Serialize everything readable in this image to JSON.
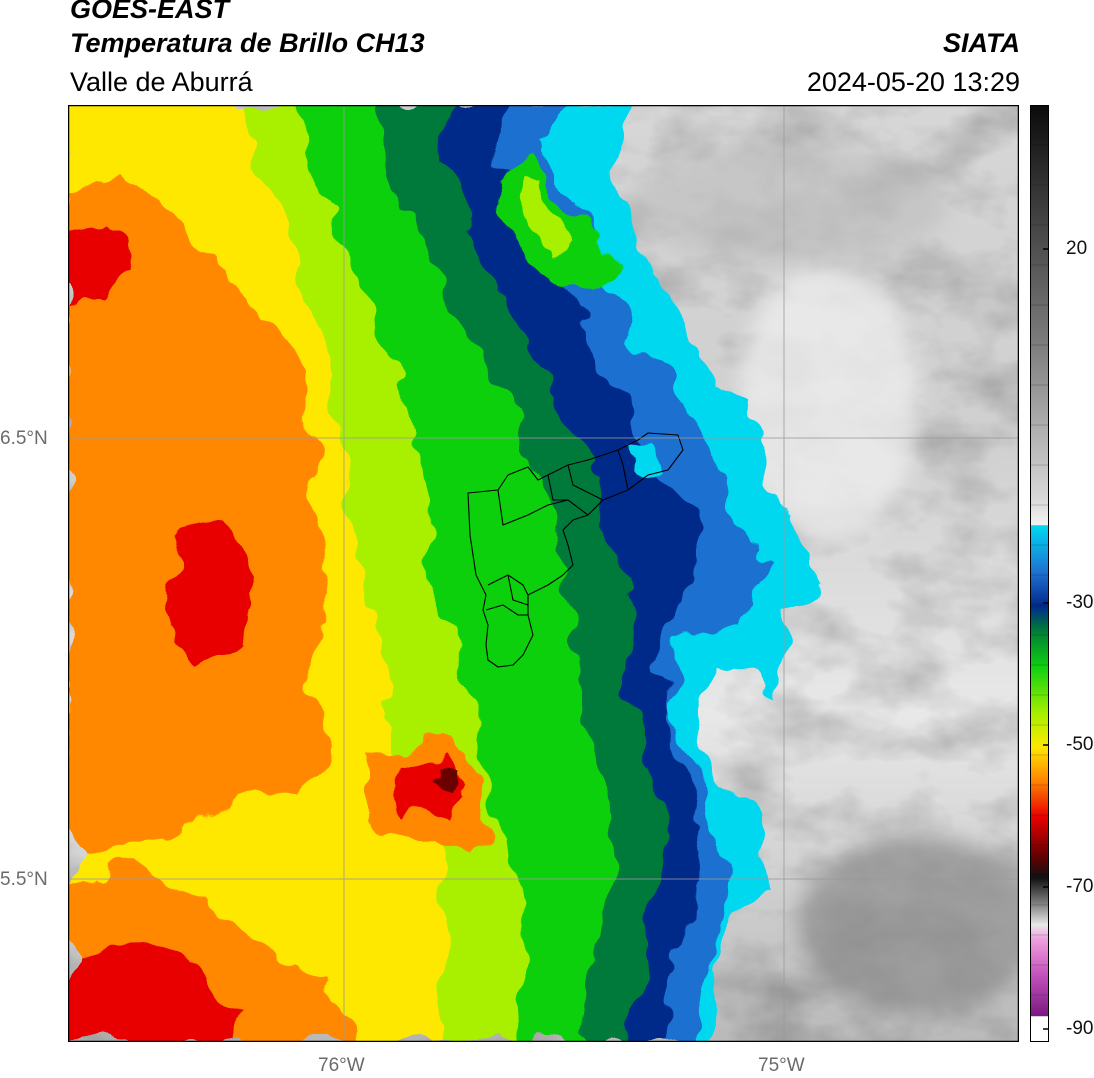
{
  "header": {
    "satellite": "GOES-EAST",
    "product": "Temperatura de Brillo CH13",
    "region": "Valle de Aburrá",
    "agency": "SIATA",
    "datetime": "2024-05-20 13:29"
  },
  "map": {
    "lon_range": [
      -76.62,
      -74.53
    ],
    "lat_range": [
      5.13,
      7.25
    ],
    "lat_ticks": [
      {
        "label": "6.5°N"
      },
      {
        "label": "5.5°N"
      }
    ],
    "lon_ticks": [
      {
        "label": "76°W"
      },
      {
        "label": "75°W"
      }
    ],
    "gridline_color": "#9a9a9a",
    "frame_color": "#000000",
    "overlay": "Valle de Aburrá municipality outlines"
  },
  "colorbar": {
    "orientation": "vertical",
    "range": [
      -92,
      33
    ],
    "tick_labels": [
      {
        "value": 20,
        "label": "20"
      },
      {
        "value": -30,
        "label": "-30"
      },
      {
        "value": -50,
        "label": "-50"
      },
      {
        "value": -70,
        "label": "-70"
      },
      {
        "value": -90,
        "label": "-90"
      }
    ],
    "colors": {
      "under_white": "#ffffff",
      "purple": "#7a1a82",
      "magenta": "#e070c8",
      "dark": "#111111",
      "red": "#e80000",
      "orange": "#ff8800",
      "yellow": "#ffe800",
      "green": "#10d010",
      "dark_green": "#007a3a",
      "navy": "#002a8a",
      "blue": "#1e6fd0",
      "cyan": "#00d8f0",
      "light_gray": "#f0f0f0",
      "dark_gray": "#303030"
    }
  }
}
